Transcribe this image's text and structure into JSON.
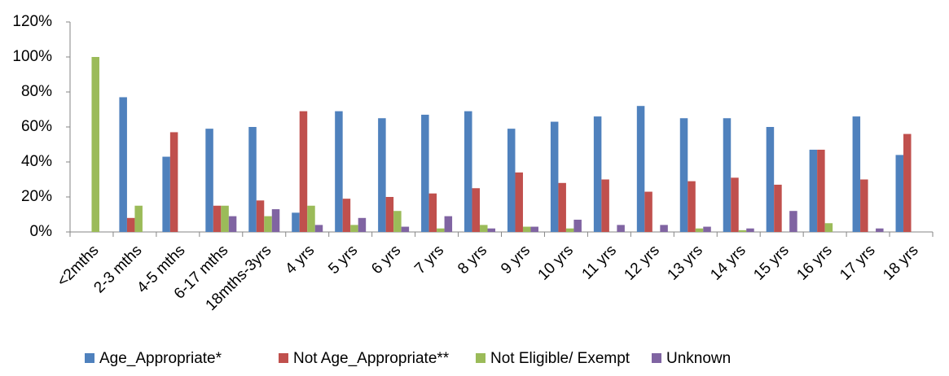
{
  "chart_data": {
    "type": "bar",
    "categories": [
      "<2mths",
      "2-3 mths",
      "4-5 mths",
      "6-17 mths",
      "18mths-3yrs",
      "4 yrs",
      "5 yrs",
      "6 yrs",
      "7 yrs",
      "8 yrs",
      "9 yrs",
      "10 yrs",
      "11 yrs",
      "12 yrs",
      "13 yrs",
      "14 yrs",
      "15 yrs",
      "16 yrs",
      "17 yrs",
      "18 yrs"
    ],
    "series": [
      {
        "name": "Age_Appropriate*",
        "color": "#4f81bd",
        "values": [
          0,
          77,
          43,
          59,
          60,
          11,
          69,
          65,
          67,
          69,
          59,
          63,
          66,
          72,
          65,
          65,
          60,
          47,
          66,
          44
        ]
      },
      {
        "name": "Not Age_Appropriate**",
        "color": "#c0504d",
        "values": [
          0,
          8,
          57,
          15,
          18,
          69,
          19,
          20,
          22,
          25,
          34,
          28,
          30,
          23,
          29,
          31,
          27,
          47,
          30,
          56
        ]
      },
      {
        "name": "Not Eligible/ Exempt",
        "color": "#9bbb59",
        "values": [
          100,
          15,
          0,
          15,
          9,
          15,
          4,
          12,
          2,
          4,
          3,
          2,
          0,
          0,
          2,
          1,
          0,
          5,
          0,
          0
        ]
      },
      {
        "name": "Unknown",
        "color": "#8064a2",
        "values": [
          0,
          0,
          0,
          9,
          13,
          4,
          8,
          3,
          9,
          2,
          3,
          7,
          4,
          4,
          3,
          2,
          12,
          0,
          2,
          0
        ]
      }
    ],
    "ylim": [
      0,
      120
    ],
    "yticks": [
      {
        "value": 0,
        "label": "0%"
      },
      {
        "value": 20,
        "label": "20%"
      },
      {
        "value": 40,
        "label": "40%"
      },
      {
        "value": 60,
        "label": "60%"
      },
      {
        "value": 80,
        "label": "80%"
      },
      {
        "value": 100,
        "label": "100%"
      },
      {
        "value": 120,
        "label": "120%"
      }
    ],
    "grid": false,
    "legend": "bottom"
  }
}
